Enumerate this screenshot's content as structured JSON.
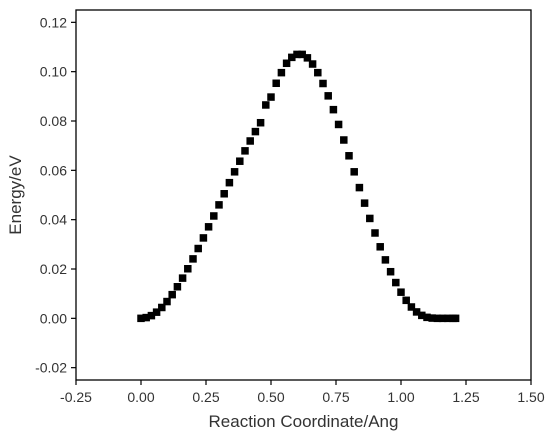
{
  "chart_data": {
    "type": "scatter",
    "title": "",
    "xlabel": "Reaction Coordinate/Ang",
    "ylabel": "Energy/eV",
    "xlim": [
      -0.25,
      1.5
    ],
    "ylim": [
      -0.025,
      0.125
    ],
    "xticks": [
      -0.25,
      0.0,
      0.25,
      0.5,
      0.75,
      1.0,
      1.25,
      1.5
    ],
    "xtick_labels": [
      "-0.25",
      "0.00",
      "0.25",
      "0.50",
      "0.75",
      "1.00",
      "1.25",
      "1.50"
    ],
    "yticks": [
      -0.02,
      0.0,
      0.02,
      0.04,
      0.06,
      0.08,
      0.1,
      0.12
    ],
    "ytick_labels": [
      "-0.02",
      "0.00",
      "0.02",
      "0.04",
      "0.06",
      "0.08",
      "0.10",
      "0.12"
    ],
    "grid": false,
    "marker": "square",
    "marker_color": "#000000",
    "series": [
      {
        "x": [
          0.0,
          0.02,
          0.04,
          0.06,
          0.08,
          0.1,
          0.12,
          0.14,
          0.16,
          0.18,
          0.2,
          0.22,
          0.24,
          0.26,
          0.28,
          0.3,
          0.32,
          0.34,
          0.36,
          0.38,
          0.4,
          0.42,
          0.44,
          0.46,
          0.48,
          0.5,
          0.52,
          0.54,
          0.56,
          0.58,
          0.6,
          0.62,
          0.64,
          0.66,
          0.68,
          0.7,
          0.72,
          0.74,
          0.76,
          0.78,
          0.8,
          0.82,
          0.84,
          0.86,
          0.88,
          0.9,
          0.92,
          0.94,
          0.96,
          0.98,
          1.0,
          1.02,
          1.04,
          1.06,
          1.08,
          1.1,
          1.12,
          1.14,
          1.16,
          1.18,
          1.2,
          1.21
        ],
        "y": [
          0.0,
          0.0003,
          0.0011,
          0.0025,
          0.0044,
          0.0068,
          0.0096,
          0.0128,
          0.0163,
          0.0201,
          0.0241,
          0.0283,
          0.0326,
          0.0371,
          0.0415,
          0.046,
          0.0505,
          0.055,
          0.0594,
          0.0637,
          0.0679,
          0.0719,
          0.0757,
          0.0793,
          0.0865,
          0.0897,
          0.0953,
          0.0996,
          0.1034,
          0.1058,
          0.107,
          0.107,
          0.1056,
          0.1031,
          0.0996,
          0.0952,
          0.0902,
          0.0846,
          0.0786,
          0.0723,
          0.0659,
          0.0594,
          0.053,
          0.0467,
          0.0405,
          0.0346,
          0.029,
          0.0237,
          0.0189,
          0.0145,
          0.0106,
          0.0073,
          0.0046,
          0.0026,
          0.0012,
          0.0004,
          0.0001,
          0.0,
          0.0,
          0.0,
          0.0,
          0.0
        ]
      }
    ]
  }
}
